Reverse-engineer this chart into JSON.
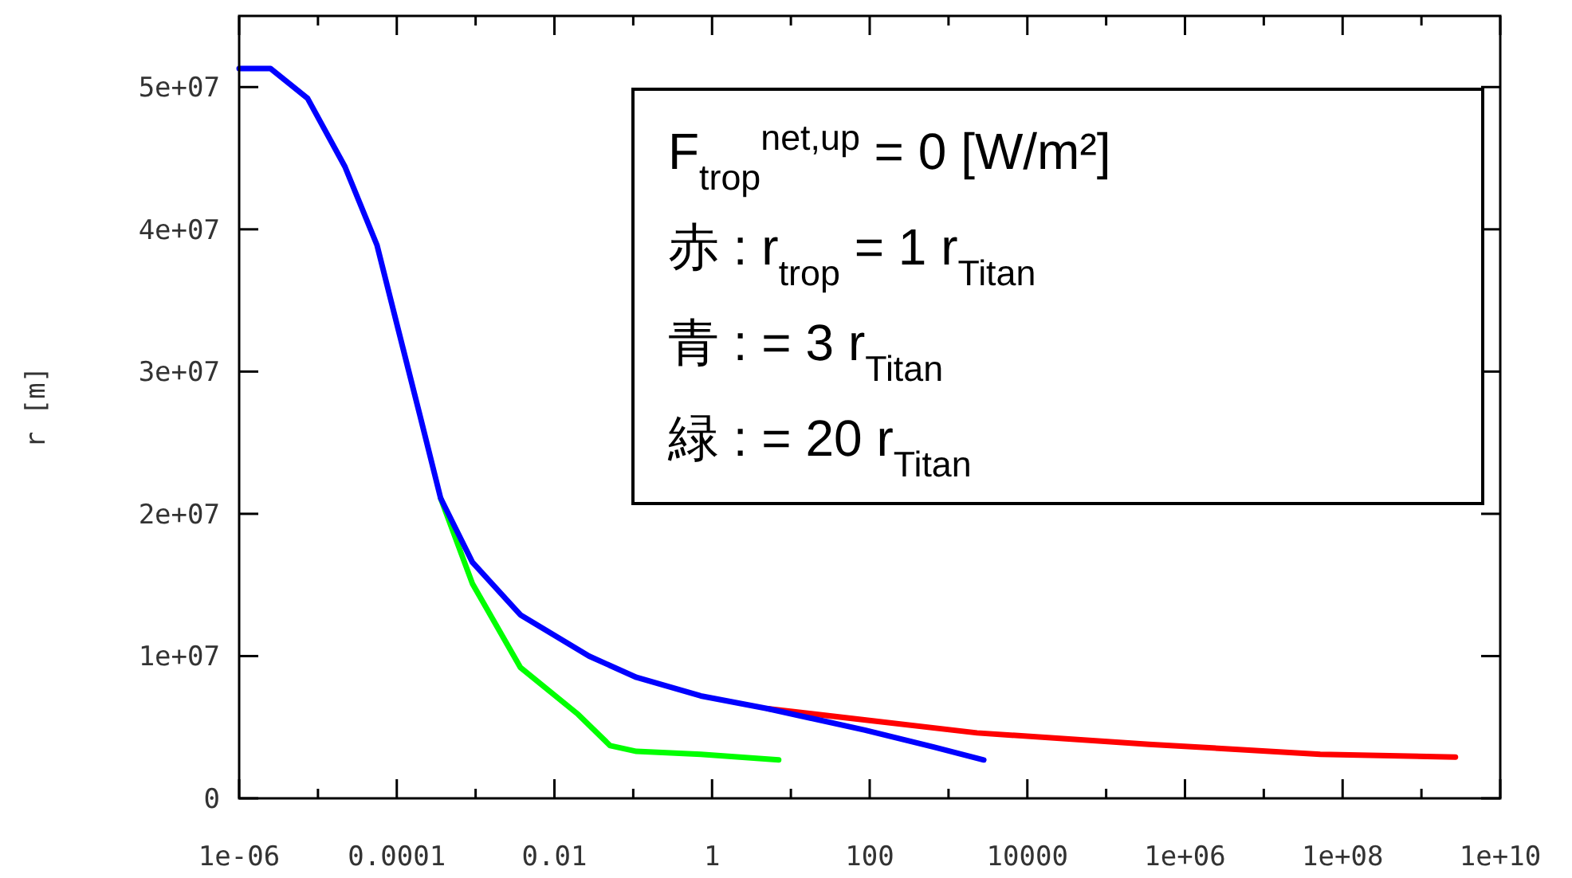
{
  "chart_data": {
    "type": "line",
    "ylabel": "r [m]",
    "log": "x",
    "xlim": [
      1e-06,
      10000000000.0
    ],
    "ylim": [
      0,
      55000000
    ],
    "xticks": [
      {
        "value": 1e-06,
        "label": "1e-06"
      },
      {
        "value": 1e-05,
        "label": null
      },
      {
        "value": 0.0001,
        "label": "0.0001"
      },
      {
        "value": 0.001,
        "label": null
      },
      {
        "value": 0.01,
        "label": "0.01"
      },
      {
        "value": 0.1,
        "label": null
      },
      1,
      {
        "value": 10,
        "label": null
      },
      100,
      {
        "value": 1000,
        "label": null
      },
      10000,
      {
        "value": 100000.0,
        "label": null
      },
      {
        "value": 1000000.0,
        "label": "1e+06"
      },
      {
        "value": 10000000.0,
        "label": null
      },
      {
        "value": 100000000.0,
        "label": "1e+08"
      },
      {
        "value": 1000000000.0,
        "label": null
      },
      {
        "value": 10000000000.0,
        "label": "1e+10"
      }
    ],
    "yticks": [
      0,
      {
        "value": 10000000,
        "label": "1e+07"
      },
      {
        "value": 20000000,
        "label": "2e+07"
      },
      {
        "value": 30000000,
        "label": "3e+07"
      },
      {
        "value": 40000000,
        "label": "4e+07"
      },
      {
        "value": 50000000,
        "label": "5e+07"
      }
    ],
    "grid": false,
    "line_style": "solid",
    "annotations": [
      "F$_{trop}$$^{net,up}$ = 0  [W/m²]",
      "赤 : r$_{trop}$ = 1 r$_{Titan}$",
      "青 : = 3 r$_{Titan}$",
      "緑 : = 20 r$_{Titan}$"
    ],
    "series": [
      {
        "color": "#ff0000",
        "x": [
          5.1,
          2300,
          350000,
          52000000,
          2700000000
        ],
        "values": [
          6300000,
          4600000,
          3800000,
          3100000,
          2900000
        ]
      },
      {
        "color": "#00ff00",
        "x": [
          0.00036,
          0.00091,
          0.0037,
          0.02,
          0.051,
          0.11,
          0.72,
          7
        ],
        "values": [
          21100000,
          15100000,
          9200000,
          5900000,
          3700000,
          3300000,
          3100000,
          2700000
        ]
      },
      {
        "color": "#0000ff",
        "x": [
          1e-06,
          2.5e-06,
          7.4e-06,
          2.2e-05,
          5.6e-05,
          0.000105,
          0.000195,
          0.00036,
          0.00091,
          0.0037,
          0.0275,
          0.11,
          0.72,
          5.1,
          87,
          650,
          2800
        ],
        "values": [
          51300000,
          51300000,
          49200000,
          44400000,
          38900000,
          32900000,
          27000000,
          21100000,
          16600000,
          12900000,
          10000000,
          8500000,
          7200000,
          6300000,
          4800000,
          3600000,
          2700000
        ]
      }
    ]
  }
}
